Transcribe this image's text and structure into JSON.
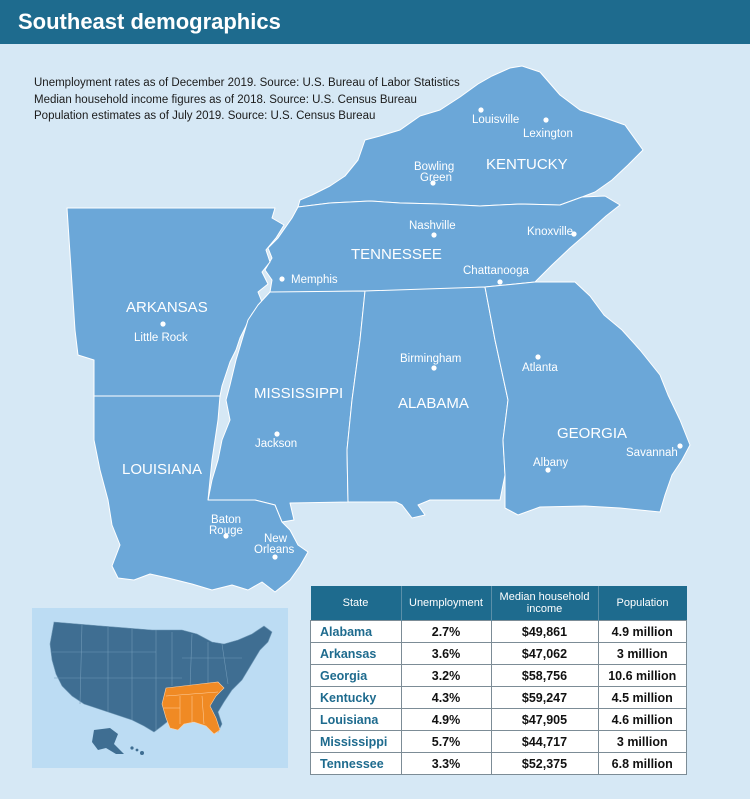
{
  "header": {
    "title": "Southeast demographics"
  },
  "sources": [
    "Unemployment rates as of December 2019. Source: U.S. Bureau of Labor Statistics",
    "Median household income figures as of 2018. Source: U.S. Census Bureau",
    "Population estimates as of July 2019. Source: U.S. Census Bureau"
  ],
  "map": {
    "states": [
      "KENTUCKY",
      "TENNESSEE",
      "ARKANSAS",
      "MISSISSIPPI",
      "ALABAMA",
      "GEORGIA",
      "LOUISIANA"
    ],
    "cities": {
      "louisville": "Louisville",
      "lexington": "Lexington",
      "bowling_green_1": "Bowling",
      "bowling_green_2": "Green",
      "nashville": "Nashville",
      "knoxville": "Knoxville",
      "memphis": "Memphis",
      "chattanooga": "Chattanooga",
      "little_rock": "Little Rock",
      "birmingham": "Birmingham",
      "atlanta": "Atlanta",
      "jackson": "Jackson",
      "albany": "Albany",
      "savannah": "Savannah",
      "baton_rouge_1": "Baton",
      "baton_rouge_2": "Rouge",
      "new_orleans_1": "New",
      "new_orleans_2": "Orleans"
    },
    "state_color": "#6ba7d8",
    "highlight_color": "#f08a24"
  },
  "table": {
    "headers": {
      "state": "State",
      "unemployment": "Unemployment",
      "income_1": "Median household",
      "income_2": "income",
      "population": "Population"
    },
    "rows": [
      {
        "state": "Alabama",
        "unemployment": "2.7%",
        "income": "$49,861",
        "population": "4.9 million"
      },
      {
        "state": "Arkansas",
        "unemployment": "3.6%",
        "income": "$47,062",
        "population": "3 million"
      },
      {
        "state": "Georgia",
        "unemployment": "3.2%",
        "income": "$58,756",
        "population": "10.6 million"
      },
      {
        "state": "Kentucky",
        "unemployment": "4.3%",
        "income": "$59,247",
        "population": "4.5 million"
      },
      {
        "state": "Louisiana",
        "unemployment": "4.9%",
        "income": "$47,905",
        "population": "4.6 million"
      },
      {
        "state": "Mississippi",
        "unemployment": "5.7%",
        "income": "$44,717",
        "population": "3 million"
      },
      {
        "state": "Tennessee",
        "unemployment": "3.3%",
        "income": "$52,375",
        "population": "6.8 million"
      }
    ]
  }
}
